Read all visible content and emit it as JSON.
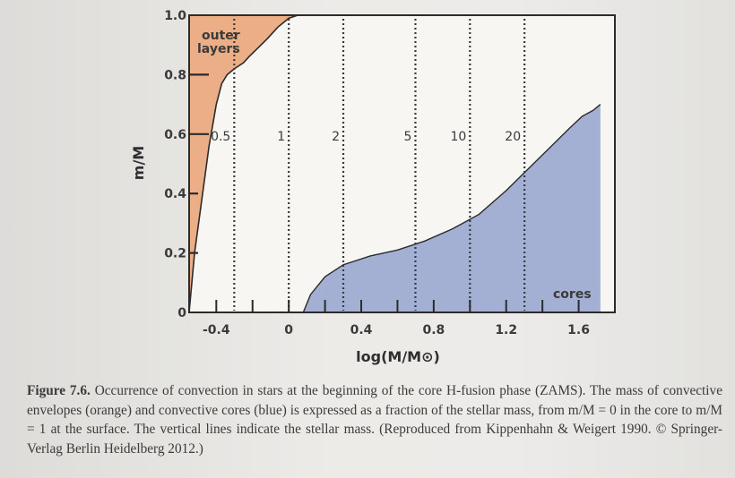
{
  "chart_data": {
    "type": "area",
    "xlabel": "log(M/M⊙)",
    "ylabel": "m/M",
    "xlim": [
      -0.55,
      1.8
    ],
    "ylim": [
      0,
      1.0
    ],
    "xticks": [
      -0.4,
      0,
      0.4,
      0.8,
      1.2,
      1.6
    ],
    "xtick_labels": [
      "-0.4",
      "0",
      "0.4",
      "0.8",
      "1.2",
      "1.6"
    ],
    "yticks": [
      0,
      0.2,
      0.4,
      0.6,
      0.8,
      1.0
    ],
    "ytick_labels": [
      "0",
      "0.2",
      "0.4",
      "0.6",
      "0.8",
      "1.0"
    ],
    "series": [
      {
        "name": "outer layers",
        "color": "#ecae86",
        "x": [
          -0.55,
          -0.52,
          -0.48,
          -0.44,
          -0.4,
          -0.37,
          -0.34,
          -0.3,
          -0.25,
          -0.22,
          -0.17,
          -0.12,
          -0.06,
          0.0,
          0.05
        ],
        "y": [
          0.0,
          0.2,
          0.38,
          0.56,
          0.7,
          0.77,
          0.8,
          0.82,
          0.84,
          0.86,
          0.89,
          0.92,
          0.96,
          0.99,
          1.0
        ]
      },
      {
        "name": "cores",
        "color": "#a3b0d3",
        "x": [
          0.08,
          0.12,
          0.2,
          0.3,
          0.45,
          0.6,
          0.75,
          0.9,
          1.05,
          1.2,
          1.35,
          1.45,
          1.55,
          1.62,
          1.68,
          1.72
        ],
        "y": [
          0.0,
          0.06,
          0.12,
          0.16,
          0.19,
          0.21,
          0.24,
          0.28,
          0.33,
          0.41,
          0.5,
          0.56,
          0.62,
          0.66,
          0.68,
          0.7
        ]
      }
    ],
    "mass_lines": [
      {
        "label": "0.5",
        "x": -0.301
      },
      {
        "label": "1",
        "x": 0.0
      },
      {
        "label": "2",
        "x": 0.301
      },
      {
        "label": "5",
        "x": 0.699
      },
      {
        "label": "10",
        "x": 1.0
      },
      {
        "label": "20",
        "x": 1.301
      }
    ],
    "annotations": [
      "outer layers",
      "cores"
    ]
  },
  "caption": {
    "label": "Figure 7.6.",
    "text": "Occurrence of convection in stars at the beginning of the core H-fusion phase (ZAMS). The mass of convective envelopes (orange) and convective cores (blue) is expressed as a fraction of the stellar mass, from m/M = 0 in the core to m/M = 1 at the surface. The vertical lines indicate the stellar mass. (Reproduced from Kippenhahn & Weigert 1990. © Springer-Verlag Berlin Heidelberg 2012.)"
  }
}
